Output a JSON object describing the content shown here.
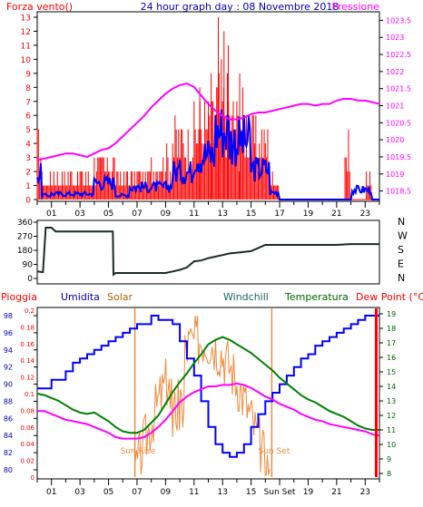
{
  "colors": {
    "wind": "#ff0000",
    "wind_avg": "#0000ff",
    "pressure": "#ff00ff",
    "rain": "#ff0000",
    "humidity": "#0000ff",
    "solar": "#f08a3c",
    "windchill": "#1a6666",
    "temperature": "#008000",
    "dewpoint": "#ff00ff",
    "direction": "#000000",
    "sun_lines": "#f08a3c",
    "frame": "#000000"
  },
  "header": {
    "left_title": "Forza vento()",
    "center_title": "24 hour graph day : 08 Novembre 2018",
    "right_title": "Pressione"
  },
  "labels": {
    "pioggia": "Pioggia",
    "umidita": "Umidita",
    "solar": "Solar",
    "windchill": "Windchill",
    "temperatura": "Temperatura",
    "dewpoint": "Dew Point (°C)",
    "sunrise": "Sun Rise",
    "sunset": "Sun Set",
    "sunset_tick": "Sun Set"
  },
  "chart_data": [
    {
      "type": "line",
      "title": "24 hour graph day : 08 Novembre 2018",
      "x_ticks": [
        "01",
        "03",
        "05",
        "07",
        "09",
        "11",
        "13",
        "15",
        "17",
        "19",
        "21",
        "23"
      ],
      "ylabel_left": "Forza vento()",
      "ylabel_right": "Pressione",
      "yticks_left": [
        "0",
        "1",
        "2",
        "3",
        "4",
        "5",
        "6",
        "7",
        "8",
        "9",
        "10",
        "11",
        "12",
        "13"
      ],
      "yticks_right": [
        "1018.5",
        "1019",
        "1019.5",
        "1020",
        "1020.5",
        "1021",
        "1021.5",
        "1022",
        "1022.5",
        "1023",
        "1023.5"
      ],
      "ylim_left": [
        0,
        13
      ],
      "ylim_right": [
        1018.25,
        1023.75
      ],
      "grid": false,
      "series": [
        {
          "name": "Pressione",
          "axis": "right",
          "x": [
            0,
            0.5,
            1,
            1.5,
            2,
            2.5,
            3,
            3.5,
            4,
            4.5,
            5,
            5.5,
            6,
            6.5,
            7,
            7.5,
            8,
            8.5,
            9,
            9.5,
            10,
            10.5,
            11,
            11.5,
            12,
            12.5,
            13,
            13.5,
            14,
            14.5,
            15,
            15.5,
            16,
            16.5,
            17,
            17.5,
            18,
            18.5,
            19,
            19.5,
            20,
            20.5,
            21,
            21.5,
            22,
            22.5,
            23,
            23.5,
            24
          ],
          "y": [
            1019.4,
            1019.45,
            1019.5,
            1019.55,
            1019.6,
            1019.6,
            1019.55,
            1019.5,
            1019.6,
            1019.7,
            1019.75,
            1019.9,
            1020.1,
            1020.3,
            1020.5,
            1020.7,
            1020.95,
            1021.15,
            1021.35,
            1021.5,
            1021.6,
            1021.65,
            1021.55,
            1021.3,
            1021.05,
            1020.85,
            1020.7,
            1020.6,
            1020.6,
            1020.65,
            1020.75,
            1020.8,
            1020.8,
            1020.85,
            1020.9,
            1020.95,
            1021.0,
            1021.05,
            1021.05,
            1021.0,
            1021.05,
            1021.05,
            1021.15,
            1021.2,
            1021.2,
            1021.15,
            1021.15,
            1021.1,
            1021.05
          ]
        }
      ]
    },
    {
      "type": "line",
      "title": "",
      "x_ticks": [
        "01",
        "03",
        "05",
        "07",
        "09",
        "11",
        "13",
        "15",
        "17",
        "19",
        "21",
        "23"
      ],
      "yticks_left": [
        "0",
        "90",
        "180",
        "270",
        "360"
      ],
      "yticks_right": [
        "N",
        "W",
        "S",
        "E",
        "N"
      ],
      "ylim": [
        0,
        360
      ],
      "series": [
        {
          "name": "",
          "x": [
            0,
            0.4,
            0.6,
            1.0,
            1.3,
            2,
            3,
            4,
            5.3,
            5.35,
            5.5,
            6,
            7,
            8,
            9,
            9.5,
            10,
            10.5,
            11,
            11.5,
            12,
            12.5,
            13,
            13.5,
            14,
            14.5,
            15,
            15.5,
            16,
            17,
            18,
            19,
            20,
            21,
            22,
            23,
            24
          ],
          "y": [
            45,
            40,
            325,
            325,
            300,
            300,
            300,
            300,
            300,
            25,
            35,
            35,
            35,
            35,
            35,
            45,
            55,
            70,
            110,
            115,
            130,
            140,
            150,
            160,
            165,
            170,
            175,
            195,
            215,
            215,
            215,
            215,
            215,
            215,
            220,
            220,
            220
          ]
        }
      ]
    },
    {
      "type": "line",
      "title": "",
      "x_ticks": [
        "01",
        "03",
        "05",
        "07",
        "09",
        "11",
        "13",
        "15",
        "Sun Set",
        "19",
        "21",
        "23"
      ],
      "yticks_pioggia": [
        "0",
        "0.02",
        "0.04",
        "0.06",
        "0.08",
        "0.1",
        "0.12",
        "0.14",
        "0.16",
        "0.18",
        "0.2"
      ],
      "yticks_umidita": [
        "80",
        "82",
        "84",
        "86",
        "88",
        "90",
        "92",
        "94",
        "96",
        "98"
      ],
      "yticks_right": [
        "8",
        "9",
        "10",
        "11",
        "12",
        "13",
        "14",
        "15",
        "16",
        "17",
        "18",
        "19"
      ],
      "ylim_right": [
        8,
        19
      ],
      "ylim_umidita": [
        80,
        98
      ],
      "grid": false,
      "series": [
        {
          "name": "Umidita",
          "axis": "umidita",
          "x": [
            0,
            0.5,
            1,
            1.5,
            2,
            2.5,
            3,
            3.5,
            4,
            4.5,
            5,
            5.5,
            6,
            6.5,
            7,
            7.5,
            8,
            8.5,
            9,
            9.5,
            10,
            10.5,
            11,
            11.5,
            12,
            12.5,
            13,
            13.5,
            14,
            14.5,
            15,
            15.5,
            16,
            16.5,
            17,
            17.5,
            18,
            18.5,
            19,
            19.5,
            20,
            20.5,
            21,
            21.5,
            22,
            22.5,
            23,
            23.5,
            24
          ],
          "y": [
            89.5,
            89.5,
            90.5,
            90.5,
            91.5,
            92.5,
            93,
            93.5,
            94,
            94.5,
            95,
            95.5,
            96,
            96.5,
            97,
            97,
            98,
            97.5,
            97.5,
            97,
            95,
            93,
            91,
            88,
            85,
            83,
            82,
            81.5,
            82,
            83,
            85,
            86.5,
            88,
            89,
            90,
            91,
            92,
            93,
            93.5,
            94.5,
            95,
            95.5,
            96,
            96.5,
            97,
            97.5,
            98,
            98,
            98
          ]
        },
        {
          "name": "Temperatura",
          "axis": "right",
          "x": [
            0,
            0.5,
            1,
            1.5,
            2,
            2.5,
            3,
            3.5,
            4,
            4.5,
            5,
            5.5,
            6,
            6.5,
            7,
            7.5,
            8,
            8.5,
            9,
            9.5,
            10,
            10.5,
            11,
            11.5,
            12,
            12.5,
            13,
            13.5,
            14,
            14.5,
            15,
            15.5,
            16,
            16.5,
            17,
            17.5,
            18,
            18.5,
            19,
            19.5,
            20,
            20.5,
            21,
            21.5,
            22,
            22.5,
            23,
            23.5,
            24
          ],
          "y": [
            13.5,
            13.4,
            13.2,
            13,
            12.7,
            12.4,
            12.2,
            12.1,
            12.2,
            11.9,
            11.6,
            11.2,
            10.9,
            10.8,
            10.8,
            11,
            11.5,
            12,
            12.8,
            13.6,
            14.3,
            14.9,
            15.6,
            16.2,
            16.9,
            17.2,
            17.4,
            17.2,
            16.9,
            16.6,
            16.3,
            15.9,
            15.5,
            15.1,
            14.6,
            14.2,
            13.8,
            13.4,
            13.1,
            12.9,
            12.6,
            12.3,
            12.1,
            11.9,
            11.6,
            11.3,
            11.1,
            11,
            11
          ]
        },
        {
          "name": "Dew Point (°C)",
          "axis": "right",
          "x": [
            0,
            0.5,
            1,
            1.5,
            2,
            2.5,
            3,
            3.5,
            4,
            4.5,
            5,
            5.5,
            6,
            6.5,
            7,
            7.5,
            8,
            8.5,
            9,
            9.5,
            10,
            10.5,
            11,
            11.5,
            12,
            12.5,
            13,
            13.5,
            14,
            14.5,
            15,
            15.5,
            16,
            16.5,
            17,
            17.5,
            18,
            18.5,
            19,
            19.5,
            20,
            20.5,
            21,
            21.5,
            22,
            22.5,
            23,
            23.5,
            24
          ],
          "y": [
            12.3,
            12.3,
            12.1,
            11.9,
            11.7,
            11.6,
            11.5,
            11.4,
            11.2,
            11,
            10.8,
            10.5,
            10.4,
            10.4,
            10.4,
            10.5,
            10.8,
            11.2,
            11.7,
            12.3,
            12.9,
            13.3,
            13.6,
            13.8,
            14,
            14,
            14.1,
            14.1,
            14.2,
            14.1,
            13.9,
            13.6,
            13.3,
            13.1,
            12.8,
            12.6,
            12.4,
            12.1,
            11.9,
            11.7,
            11.6,
            11.4,
            11.3,
            11.2,
            11.1,
            11,
            10.9,
            10.7,
            10.6
          ]
        },
        {
          "name": "Windchill",
          "axis": "right",
          "x": [
            0,
            0.5,
            1,
            1.5,
            2,
            2.5,
            3,
            3.5,
            4,
            4.5,
            5,
            5.5,
            6,
            6.5,
            7,
            7.5,
            8,
            8.5,
            9,
            9.5,
            10,
            10.5,
            11,
            11.5,
            12,
            12.5,
            13,
            13.5,
            14,
            14.5,
            15,
            15.5,
            16,
            16.5,
            17,
            17.5,
            18,
            18.5,
            19,
            19.5,
            20,
            20.5,
            21,
            21.5,
            22,
            22.5,
            23,
            23.5,
            24
          ],
          "y": [
            13.5,
            13.4,
            13.2,
            13,
            12.7,
            12.4,
            12.2,
            12.1,
            12.2,
            11.9,
            11.6,
            11.2,
            10.9,
            10.8,
            10.8,
            11,
            11.5,
            12,
            12.8,
            13.6,
            14.3,
            14.9,
            15.6,
            16.2,
            16.9,
            17.2,
            17.4,
            17.2,
            16.9,
            16.6,
            16.3,
            15.9,
            15.5,
            15.1,
            14.6,
            14.2,
            13.8,
            13.4,
            13.1,
            12.9,
            12.6,
            12.3,
            12.1,
            11.9,
            11.6,
            11.3,
            11.1,
            11,
            11
          ]
        }
      ]
    }
  ]
}
